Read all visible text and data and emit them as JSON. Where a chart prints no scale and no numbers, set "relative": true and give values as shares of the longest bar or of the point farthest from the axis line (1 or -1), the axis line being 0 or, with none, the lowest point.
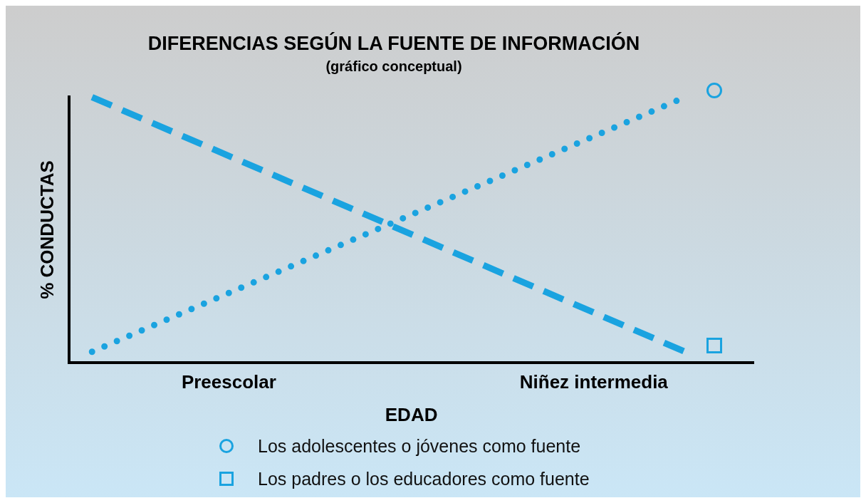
{
  "chart_data": {
    "type": "line",
    "title": "DIFERENCIAS SEGÚN LA FUENTE DE INFORMACIÓN",
    "subtitle": "(gráfico conceptual)",
    "xlabel": "EDAD",
    "ylabel": "% CONDUCTAS",
    "relative": true,
    "legend": "bottom",
    "grid": false,
    "categories": [
      null,
      null,
      null,
      "Preescolar",
      null,
      null,
      null,
      null,
      null,
      null,
      null,
      "Niñez intermedia",
      null,
      null,
      null
    ],
    "series": [
      {
        "name": "Los adolescentes o jóvenes como fuente",
        "color": "#1aa3e0",
        "line_style": "dotted",
        "values": [
          0.04,
          null,
          null,
          null,
          null,
          null,
          null,
          null,
          null,
          null,
          null,
          null,
          null,
          1,
          null
        ]
      },
      {
        "name": "Los padres o los educadores como fuente",
        "color": "#1aa3e0",
        "line_style": "dashed",
        "values": [
          1,
          null,
          null,
          null,
          null,
          null,
          null,
          null,
          null,
          null,
          null,
          null,
          null,
          0.04,
          null
        ]
      }
    ]
  }
}
